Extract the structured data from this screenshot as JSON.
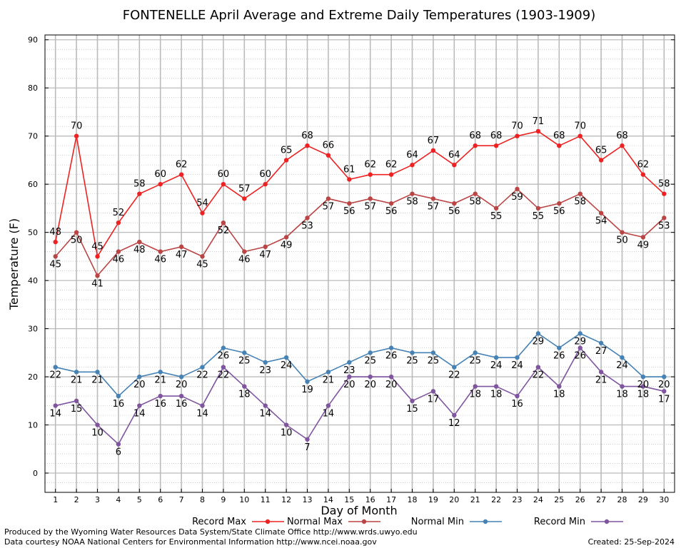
{
  "chart_data": {
    "type": "line",
    "title": "FONTENELLE April Average and Extreme Daily Temperatures (1903-1909)",
    "xlabel": "Day of Month",
    "ylabel": "Temperature (F)",
    "x": [
      1,
      2,
      3,
      4,
      5,
      6,
      7,
      8,
      9,
      10,
      11,
      12,
      13,
      14,
      15,
      16,
      17,
      18,
      19,
      20,
      21,
      22,
      23,
      24,
      25,
      26,
      27,
      28,
      29,
      30
    ],
    "xlim": [
      0.5,
      30.5
    ],
    "ylim": [
      -4,
      91
    ],
    "yticks": [
      0,
      10,
      20,
      30,
      40,
      50,
      60,
      70,
      80,
      90
    ],
    "grid": true,
    "legend_position": "bottom",
    "series": [
      {
        "name": "Record Max",
        "color": "#ee2222",
        "values": [
          48,
          70,
          45,
          52,
          58,
          60,
          62,
          54,
          60,
          57,
          60,
          65,
          68,
          66,
          61,
          62,
          62,
          64,
          67,
          64,
          68,
          68,
          70,
          71,
          68,
          70,
          65,
          68,
          62,
          58
        ]
      },
      {
        "name": "Normal Max",
        "color": "#bb4444",
        "values": [
          45,
          50,
          41,
          46,
          48,
          46,
          47,
          45,
          52,
          46,
          47,
          49,
          53,
          57,
          56,
          57,
          56,
          58,
          57,
          56,
          58,
          55,
          59,
          55,
          56,
          58,
          54,
          50,
          49,
          53
        ]
      },
      {
        "name": "Normal Min",
        "color": "#4682b4",
        "values": [
          22,
          21,
          21,
          16,
          20,
          21,
          20,
          22,
          26,
          25,
          23,
          24,
          19,
          21,
          23,
          25,
          26,
          25,
          25,
          22,
          25,
          24,
          24,
          29,
          26,
          29,
          27,
          24,
          20,
          20
        ]
      },
      {
        "name": "Record Min",
        "color": "#8055a0",
        "values": [
          14,
          15,
          10,
          6,
          14,
          16,
          16,
          14,
          22,
          18,
          14,
          10,
          7,
          14,
          20,
          20,
          20,
          15,
          17,
          12,
          18,
          18,
          16,
          22,
          18,
          26,
          21,
          18,
          18,
          17
        ]
      }
    ]
  },
  "footer": {
    "line1": "Produced by the Wyoming Water Resources Data System/State Climate Office http://www.wrds.uwyo.edu",
    "line2": "Data courtesy NOAA National Centers for Environmental Information http://www.ncei.noaa.gov",
    "created": "Created:  25-Sep-2024"
  }
}
